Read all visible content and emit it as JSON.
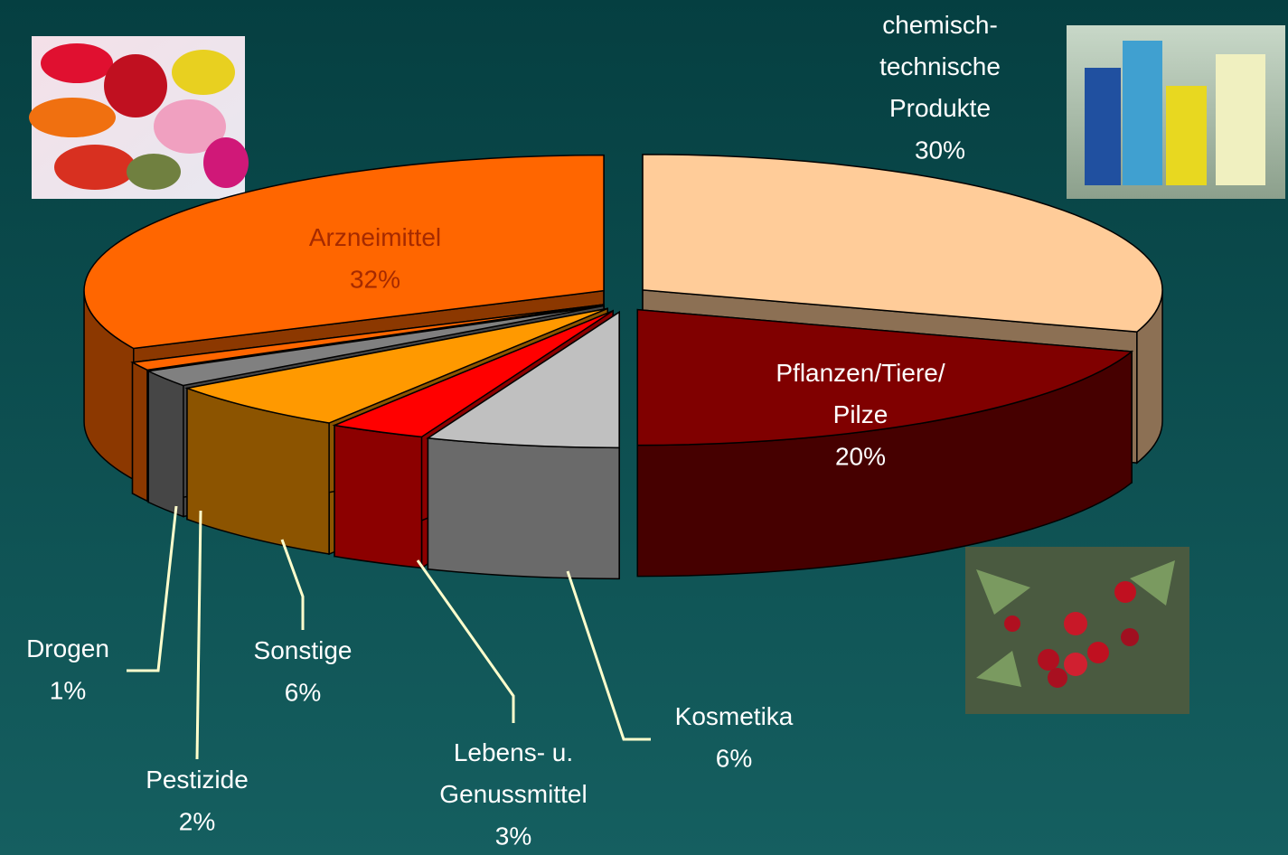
{
  "chart_data": {
    "type": "pie3d",
    "categories": [
      "chemisch-\ntechnische\nProdukte",
      "Pflanzen/Tiere/\nPilze",
      "Kosmetika",
      "Lebens- u.\nGenussmittel",
      "Sonstige",
      "Pestizide",
      "Drogen",
      "Arzneimittel"
    ],
    "values": [
      30,
      20,
      6,
      3,
      6,
      2,
      1,
      32
    ],
    "value_labels": [
      "30%",
      "20%",
      "6%",
      "3%",
      "6%",
      "2%",
      "1%",
      "32%"
    ],
    "colors": [
      "#ffcc99",
      "#800000",
      "#c0c0c0",
      "#ff0000",
      "#ff9900",
      "#808080",
      "#ff6600",
      "#ff6600"
    ]
  }
}
